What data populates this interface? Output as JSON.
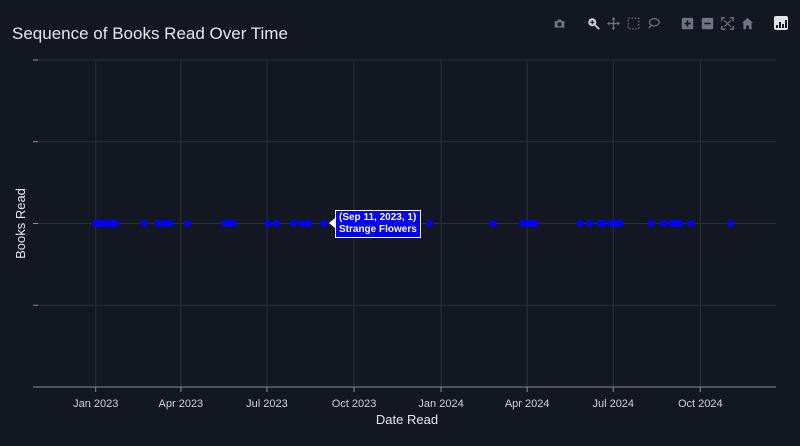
{
  "page": {
    "title": "Sequence of Books Read Over Time"
  },
  "toolbar": {
    "buttons": [
      {
        "name": "camera-icon",
        "label": "Download plot as png"
      },
      {
        "name": "zoom-icon",
        "label": "Zoom"
      },
      {
        "name": "pan-icon",
        "label": "Pan"
      },
      {
        "name": "box-select-icon",
        "label": "Box Select"
      },
      {
        "name": "lasso-select-icon",
        "label": "Lasso Select"
      },
      {
        "name": "zoom-in-icon",
        "label": "Zoom in"
      },
      {
        "name": "zoom-out-icon",
        "label": "Zoom out"
      },
      {
        "name": "autoscale-icon",
        "label": "Autoscale"
      },
      {
        "name": "home-icon",
        "label": "Reset axes"
      },
      {
        "name": "plotly-logo-icon",
        "label": "Produced with Plotly"
      }
    ]
  },
  "tooltip": {
    "line1": "(Sep 11, 2023, 1)",
    "line2": "Strange Flowers"
  },
  "chart_data": {
    "type": "scatter",
    "title": "Sequence of Books Read Over Time",
    "xlabel": "Date Read",
    "ylabel": "Books Read",
    "xlim": [
      "2022-11-01",
      "2024-12-20"
    ],
    "ylim": [
      -1,
      3
    ],
    "x_ticks": [
      "Jan 2023",
      "Apr 2023",
      "Jul 2023",
      "Oct 2023",
      "Jan 2024",
      "Apr 2024",
      "Jul 2024",
      "Oct 2024"
    ],
    "x_tick_dates": [
      "2023-01-01",
      "2023-04-01",
      "2023-07-01",
      "2023-10-01",
      "2024-01-01",
      "2024-04-01",
      "2024-07-01",
      "2024-10-01"
    ],
    "grid": true,
    "marker_color": "#0000ff",
    "series": [
      {
        "x": [
          "2023-01-01",
          "2023-01-04",
          "2023-01-07",
          "2023-01-09",
          "2023-01-15",
          "2023-01-19",
          "2023-01-22",
          "2023-02-21",
          "2023-03-08",
          "2023-03-15",
          "2023-03-20",
          "2023-04-08",
          "2023-05-17",
          "2023-05-22",
          "2023-05-26",
          "2023-07-02",
          "2023-07-11",
          "2023-07-29",
          "2023-08-07",
          "2023-08-14",
          "2023-08-30",
          "2023-09-11",
          "2023-11-13",
          "2023-12-01",
          "2023-12-20",
          "2024-02-25",
          "2024-03-27",
          "2024-04-02",
          "2024-04-06",
          "2024-04-09",
          "2024-05-27",
          "2024-06-06",
          "2024-06-17",
          "2024-06-20",
          "2024-06-29",
          "2024-07-04",
          "2024-07-08",
          "2024-08-10",
          "2024-08-23",
          "2024-09-01",
          "2024-09-04",
          "2024-09-09",
          "2024-09-21",
          "2024-11-02"
        ],
        "y": [
          1,
          1,
          1,
          1,
          1,
          1,
          1,
          1,
          1,
          1,
          1,
          1,
          1,
          1,
          1,
          1,
          1,
          1,
          1,
          1,
          1,
          1,
          1,
          1,
          1,
          1,
          1,
          1,
          1,
          1,
          1,
          1,
          1,
          1,
          1,
          1,
          1,
          1,
          1,
          1,
          1,
          1,
          1,
          1
        ]
      }
    ]
  }
}
